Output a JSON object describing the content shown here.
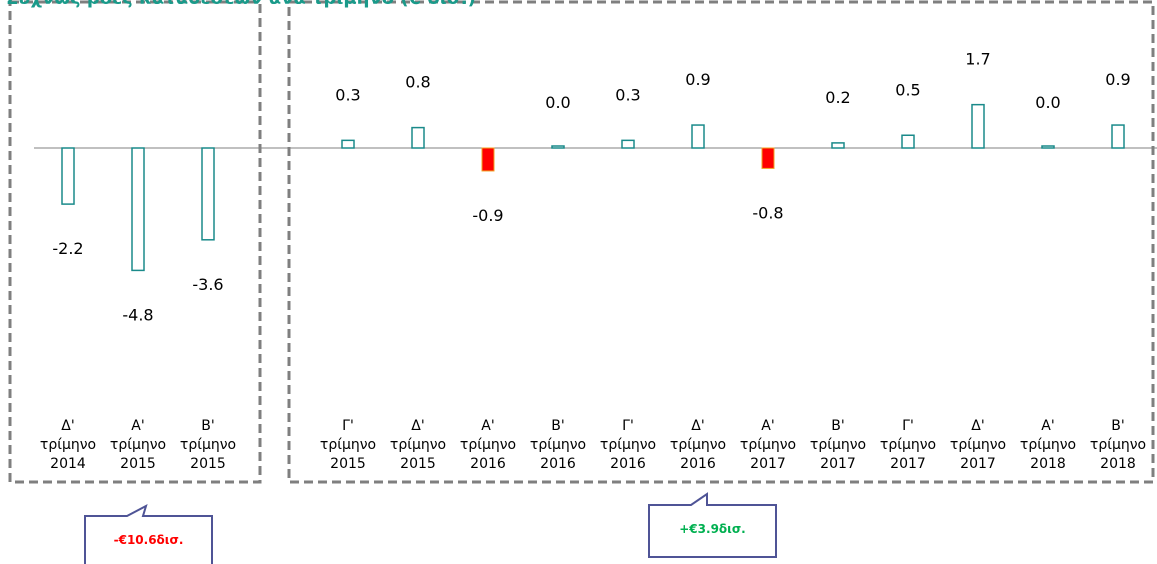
{
  "colors": {
    "title": "#1a9a8a",
    "bar_outline": "#1a8a8a",
    "bar_negative_highlight": "#ff0000",
    "bar_negative_highlight_edge": "#f0a020",
    "group_border": "#7f7f7f",
    "callout_border": "#4f5496",
    "callout_negative_text": "#ff0000",
    "callout_positive_text": "#00b050"
  },
  "title": "Συχνώς ροές καταθέσεων ανά τρίμηνο (€ δισ.)",
  "callouts": {
    "left": "-€10.6δισ.",
    "right": "+€3.9δισ."
  },
  "chart_data": {
    "type": "bar",
    "title": "Συχνώς ροές καταθέσεων ανά τρίμηνο (€ δισ.)",
    "xlabel": "",
    "ylabel": "",
    "grid": false,
    "ylim": [
      -9.2,
      3.0
    ],
    "categories": [
      [
        "Δ'",
        "τρίμηνο",
        "2014"
      ],
      [
        "Α'",
        "τρίμηνο",
        "2015"
      ],
      [
        "Β'",
        "τρίμηνο",
        "2015"
      ],
      [
        "Γ'",
        "τρίμηνο",
        "2015"
      ],
      [
        "Δ'",
        "τρίμηνο",
        "2015"
      ],
      [
        "Α'",
        "τρίμηνο",
        "2016"
      ],
      [
        "Β'",
        "τρίμηνο",
        "2016"
      ],
      [
        "Γ'",
        "τρίμηνο",
        "2016"
      ],
      [
        "Δ'",
        "τρίμηνο",
        "2016"
      ],
      [
        "Α'",
        "τρίμηνο",
        "2017"
      ],
      [
        "Β'",
        "τρίμηνο",
        "2017"
      ],
      [
        "Γ'",
        "τρίμηνο",
        "2017"
      ],
      [
        "Δ'",
        "τρίμηνο",
        "2017"
      ],
      [
        "Α'",
        "τρίμηνο",
        "2018"
      ],
      [
        "Β'",
        "τρίμηνο",
        "2018"
      ]
    ],
    "values": [
      -2.2,
      -4.8,
      -3.6,
      0.3,
      0.8,
      -0.9,
      0.0,
      0.3,
      0.9,
      -0.8,
      0.2,
      0.5,
      1.7,
      0.0,
      0.9
    ],
    "value_labels": [
      "-2.2",
      "-4.8",
      "-3.6",
      "0.3",
      "0.8",
      "-0.9",
      "0.0",
      "0.3",
      "0.9",
      "-0.8",
      "0.2",
      "0.5",
      "1.7",
      "0.0",
      "0.9"
    ],
    "highlighted": [
      false,
      false,
      false,
      false,
      false,
      true,
      false,
      false,
      false,
      true,
      false,
      false,
      false,
      false,
      false
    ],
    "groups": [
      {
        "from": 0,
        "to": 2,
        "total": "-€10.6δισ."
      },
      {
        "from": 3,
        "to": 14,
        "total": "+€3.9δισ."
      }
    ]
  }
}
